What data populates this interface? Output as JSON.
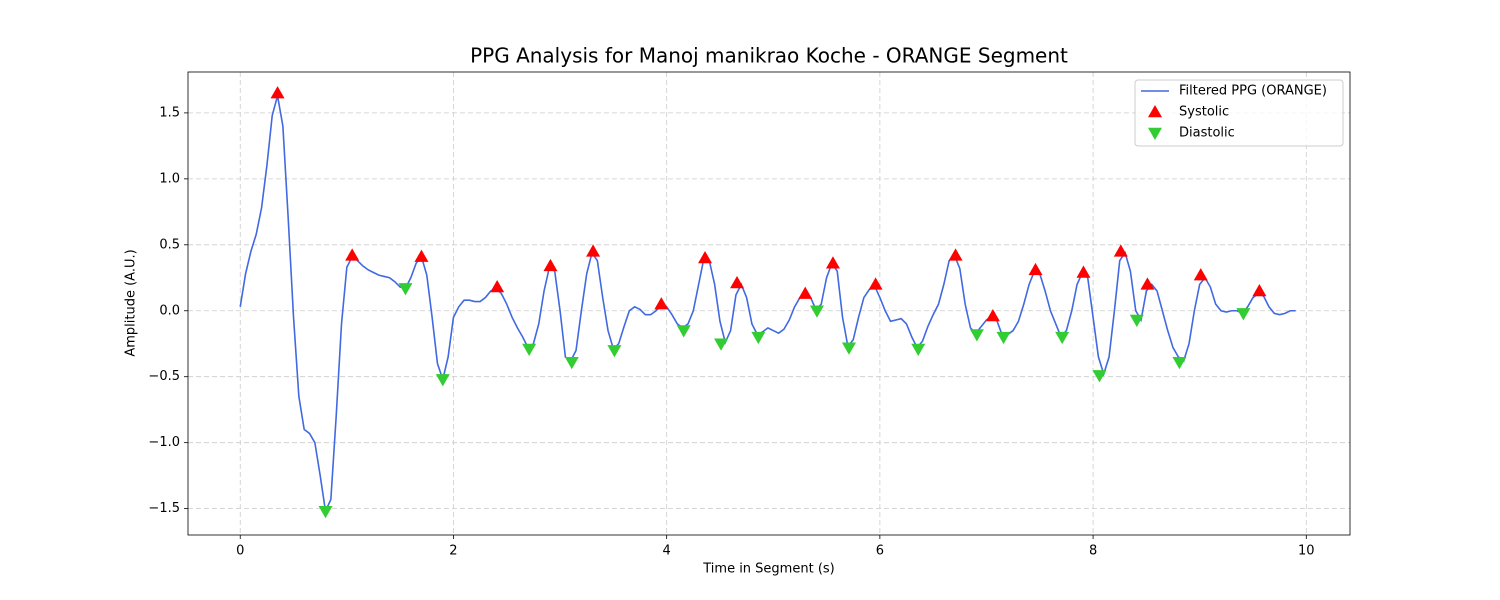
{
  "chart_data": {
    "type": "line",
    "title": "PPG Analysis for Manoj manikrao Koche - ORANGE Segment",
    "x_label": "Time in Segment (s)",
    "y_label": "Amplitude (A.U.)",
    "xlim": [
      -0.49,
      10.41
    ],
    "ylim": [
      -1.7,
      1.81
    ],
    "xticks": [
      0,
      2,
      4,
      6,
      8,
      10
    ],
    "yticks": [
      {
        "value": -1.5,
        "label": "−1.5"
      },
      {
        "value": -1.0,
        "label": "−1.0"
      },
      {
        "value": -0.5,
        "label": "−0.5"
      },
      {
        "value": 0,
        "label": "0.0"
      },
      0.5,
      {
        "value": 1.0,
        "label": "1.0"
      },
      1.5
    ],
    "grid": true,
    "legend": "upper right",
    "series": [
      {
        "name": "Filtered PPG (ORANGE)",
        "type": "line",
        "color": "#4169e1",
        "x": [
          0,
          0.05,
          0.1,
          0.15,
          0.2,
          0.25,
          0.3,
          0.35,
          0.4,
          0.45,
          0.5,
          0.55,
          0.6,
          0.65,
          0.7,
          0.75,
          0.8,
          0.85,
          0.9,
          0.95,
          1,
          1.05,
          1.1,
          1.15,
          1.2,
          1.25,
          1.3,
          1.35,
          1.4,
          1.45,
          1.5,
          1.55,
          1.6,
          1.65,
          1.7,
          1.75,
          1.8,
          1.85,
          1.9,
          1.95,
          2,
          2.05,
          2.1,
          2.15,
          2.2,
          2.25,
          2.3,
          2.35,
          2.4,
          2.45,
          2.5,
          2.55,
          2.6,
          2.65,
          2.7,
          2.75,
          2.8,
          2.85,
          2.9,
          2.95,
          3,
          3.05,
          3.1,
          3.15,
          3.2,
          3.25,
          3.3,
          3.35,
          3.4,
          3.45,
          3.5,
          3.55,
          3.6,
          3.65,
          3.7,
          3.75,
          3.8,
          3.85,
          3.9,
          3.95,
          4,
          4.05,
          4.1,
          4.15,
          4.2,
          4.25,
          4.3,
          4.35,
          4.4,
          4.45,
          4.5,
          4.55,
          4.6,
          4.65,
          4.7,
          4.75,
          4.8,
          4.85,
          4.9,
          4.95,
          5,
          5.05,
          5.1,
          5.15,
          5.2,
          5.25,
          5.3,
          5.35,
          5.4,
          5.45,
          5.5,
          5.55,
          5.6,
          5.65,
          5.7,
          5.75,
          5.8,
          5.85,
          5.9,
          5.95,
          6,
          6.05,
          6.1,
          6.15,
          6.2,
          6.25,
          6.3,
          6.35,
          6.4,
          6.45,
          6.5,
          6.55,
          6.6,
          6.65,
          6.7,
          6.75,
          6.8,
          6.85,
          6.9,
          6.95,
          7,
          7.05,
          7.1,
          7.15,
          7.2,
          7.25,
          7.3,
          7.35,
          7.4,
          7.45,
          7.5,
          7.55,
          7.6,
          7.65,
          7.7,
          7.75,
          7.8,
          7.85,
          7.9,
          7.95,
          8,
          8.05,
          8.1,
          8.15,
          8.2,
          8.25,
          8.3,
          8.35,
          8.4,
          8.45,
          8.5,
          8.55,
          8.6,
          8.65,
          8.7,
          8.75,
          8.8,
          8.85,
          8.9,
          8.95,
          9,
          9.05,
          9.1,
          9.15,
          9.2,
          9.25,
          9.3,
          9.35,
          9.4,
          9.45,
          9.5,
          9.55,
          9.6,
          9.65,
          9.7,
          9.75,
          9.8,
          9.85,
          9.9
        ],
        "values": [
          0.03,
          0.28,
          0.45,
          0.58,
          0.78,
          1.1,
          1.48,
          1.63,
          1.4,
          0.7,
          -0.05,
          -0.65,
          -0.9,
          -0.93,
          -1.0,
          -1.25,
          -1.52,
          -1.43,
          -0.8,
          -0.1,
          0.33,
          0.41,
          0.38,
          0.34,
          0.31,
          0.29,
          0.27,
          0.26,
          0.25,
          0.22,
          0.18,
          0.17,
          0.25,
          0.36,
          0.41,
          0.27,
          -0.05,
          -0.4,
          -0.52,
          -0.35,
          -0.05,
          0.03,
          0.08,
          0.08,
          0.07,
          0.07,
          0.1,
          0.15,
          0.17,
          0.13,
          0.05,
          -0.05,
          -0.13,
          -0.2,
          -0.28,
          -0.25,
          -0.1,
          0.15,
          0.33,
          0.3,
          0.0,
          -0.35,
          -0.38,
          -0.3,
          0.0,
          0.28,
          0.44,
          0.38,
          0.1,
          -0.15,
          -0.29,
          -0.25,
          -0.12,
          0.0,
          0.03,
          0.01,
          -0.03,
          -0.03,
          0.0,
          0.04,
          0.03,
          -0.03,
          -0.1,
          -0.13,
          -0.1,
          0.0,
          0.2,
          0.4,
          0.38,
          0.2,
          -0.08,
          -0.24,
          -0.15,
          0.12,
          0.2,
          0.1,
          -0.1,
          -0.18,
          -0.16,
          -0.13,
          -0.15,
          -0.17,
          -0.14,
          -0.07,
          0.03,
          0.1,
          0.13,
          0.1,
          0.01,
          0.05,
          0.25,
          0.36,
          0.3,
          -0.05,
          -0.27,
          -0.22,
          -0.05,
          0.1,
          0.16,
          0.19,
          0.1,
          0.0,
          -0.08,
          -0.07,
          -0.06,
          -0.1,
          -0.2,
          -0.28,
          -0.23,
          -0.12,
          -0.03,
          0.05,
          0.2,
          0.38,
          0.42,
          0.32,
          0.05,
          -0.13,
          -0.17,
          -0.12,
          -0.07,
          -0.04,
          -0.08,
          -0.19,
          -0.18,
          -0.15,
          -0.08,
          0.05,
          0.2,
          0.3,
          0.28,
          0.15,
          0.0,
          -0.1,
          -0.2,
          -0.15,
          0.0,
          0.2,
          0.29,
          0.25,
          -0.05,
          -0.35,
          -0.48,
          -0.35,
          0.0,
          0.38,
          0.44,
          0.3,
          0.0,
          -0.07,
          0.15,
          0.2,
          0.15,
          0.0,
          -0.15,
          -0.28,
          -0.35,
          -0.38,
          -0.25,
          0.0,
          0.2,
          0.25,
          0.18,
          0.05,
          0.0,
          -0.01,
          0.0,
          0.0,
          -0.02,
          0.03,
          0.1,
          0.13,
          0.11,
          0.03,
          -0.02,
          -0.03,
          -0.02,
          0.0,
          0.0
        ]
      },
      {
        "name": "Systolic",
        "type": "scatter",
        "marker": "triangle-up",
        "color": "#ff0000",
        "x": [
          0.35,
          1.05,
          1.7,
          2.41,
          2.91,
          3.31,
          3.95,
          4.36,
          4.66,
          5.3,
          5.56,
          5.96,
          6.71,
          7.06,
          7.46,
          7.91,
          8.26,
          8.51,
          9.01,
          9.56
        ],
        "values": [
          1.65,
          0.42,
          0.41,
          0.18,
          0.34,
          0.45,
          0.05,
          0.4,
          0.21,
          0.13,
          0.36,
          0.2,
          0.42,
          -0.04,
          0.31,
          0.29,
          0.45,
          0.2,
          0.27,
          0.15
        ]
      },
      {
        "name": "Diastolic",
        "type": "scatter",
        "marker": "triangle-down",
        "color": "#32cd32",
        "x": [
          0.8,
          1.55,
          1.9,
          2.71,
          3.11,
          3.51,
          4.16,
          4.51,
          4.86,
          5.41,
          5.71,
          6.36,
          6.91,
          7.16,
          7.71,
          8.06,
          8.41,
          8.81,
          9.41
        ],
        "values": [
          -1.52,
          0.17,
          -0.52,
          -0.29,
          -0.39,
          -0.3,
          -0.15,
          -0.25,
          -0.2,
          0.0,
          -0.28,
          -0.29,
          -0.18,
          -0.2,
          -0.2,
          -0.49,
          -0.07,
          -0.39,
          -0.02
        ]
      }
    ]
  }
}
